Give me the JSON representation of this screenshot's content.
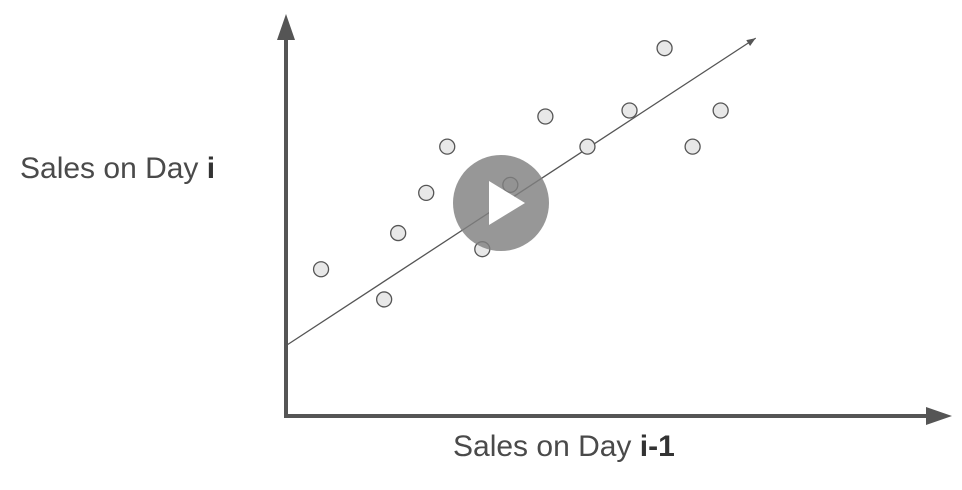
{
  "chart_data": {
    "type": "scatter",
    "xlabel": "Sales on Day ",
    "xlabel_bold": "i-1",
    "ylabel": "Sales on Day ",
    "ylabel_bold": "i",
    "points": [
      {
        "x": 0.5,
        "y": 3.8
      },
      {
        "x": 1.4,
        "y": 2.3
      },
      {
        "x": 1.6,
        "y": 5.6
      },
      {
        "x": 2.0,
        "y": 7.6
      },
      {
        "x": 2.3,
        "y": 9.9
      },
      {
        "x": 2.8,
        "y": 4.8
      },
      {
        "x": 3.2,
        "y": 8.0
      },
      {
        "x": 3.7,
        "y": 11.4
      },
      {
        "x": 4.3,
        "y": 9.9
      },
      {
        "x": 4.9,
        "y": 11.7
      },
      {
        "x": 5.4,
        "y": 14.8
      },
      {
        "x": 5.8,
        "y": 9.9
      },
      {
        "x": 6.2,
        "y": 11.7
      }
    ],
    "trend_line": {
      "x0": 0.0,
      "y0": 0.0,
      "x1": 6.7,
      "y1": 15.3
    },
    "xlim": [
      0,
      9.5
    ],
    "ylim": [
      -3.6,
      16.5
    ],
    "grid": false,
    "colors": {
      "axis": "#555555",
      "trend": "#555555",
      "point_fill": "#e8e8e8",
      "point_stroke": "#555555"
    }
  },
  "player": {
    "icon": "play-icon"
  }
}
